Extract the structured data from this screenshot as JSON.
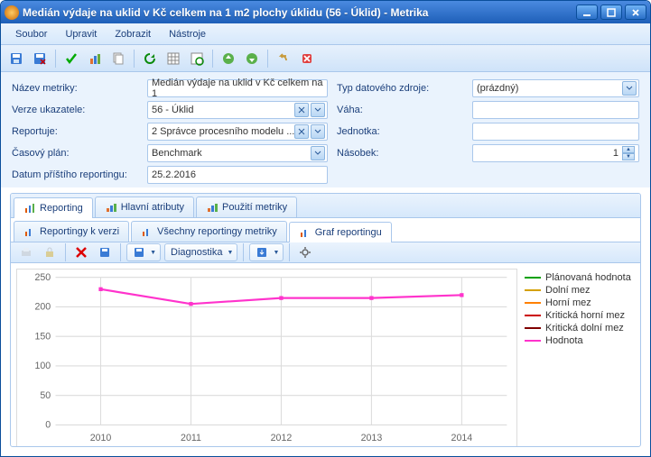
{
  "window": {
    "title": "Medián výdaje na uklid v Kč celkem na 1 m2 plochy úklidu (56 - Úklid) - Metrika"
  },
  "menu": {
    "items": [
      "Soubor",
      "Upravit",
      "Zobrazit",
      "Nástroje"
    ]
  },
  "form": {
    "labels": {
      "nazev": "Název metriky:",
      "verze": "Verze ukazatele:",
      "reportuje": "Reportuje:",
      "casovy": "Časový plán:",
      "datum": "Datum příštího reportingu:",
      "typ": "Typ datového zdroje:",
      "vaha": "Váha:",
      "jednotka": "Jednotka:",
      "nasobek": "Násobek:"
    },
    "values": {
      "nazev": "Medián výdaje na uklid v Kč celkem na 1",
      "verze": "56 - Úklid",
      "reportuje": "2 Správce procesního modelu  ...",
      "casovy": "Benchmark",
      "datum": "25.2.2016",
      "typ": "(prázdný)",
      "vaha": "",
      "jednotka": "",
      "nasobek": "1"
    }
  },
  "tabs_top": [
    {
      "label": "Reporting",
      "active": true
    },
    {
      "label": "Hlavní atributy",
      "active": false
    },
    {
      "label": "Použití metriky",
      "active": false
    }
  ],
  "tabs_sub": [
    {
      "label": "Reportingy k verzi",
      "active": false
    },
    {
      "label": "Všechny reportingy metriky",
      "active": false
    },
    {
      "label": "Graf reportingu",
      "active": true
    }
  ],
  "subtoolbar": {
    "diag": "Diagnostika"
  },
  "chart": {
    "type": "line",
    "background_color": "#ffffff",
    "grid_color": "#dcdcdc",
    "axis_color": "#666666",
    "label_fontsize": 10,
    "ylim": [
      0,
      250
    ],
    "ytick_step": 50,
    "x_categories": [
      "2010",
      "2011",
      "2012",
      "2013",
      "2014"
    ],
    "series": [
      {
        "name": "Plánovaná hodnota",
        "color": "#00a000",
        "values": [
          0,
          0,
          0,
          0,
          0
        ],
        "visible": false
      },
      {
        "name": "Dolní mez",
        "color": "#d4a000",
        "values": [
          0,
          0,
          0,
          0,
          0
        ],
        "visible": false
      },
      {
        "name": "Horní mez",
        "color": "#ff8000",
        "values": [
          0,
          0,
          0,
          0,
          0
        ],
        "visible": false
      },
      {
        "name": "Kritická horní mez",
        "color": "#cc0000",
        "values": [
          0,
          0,
          0,
          0,
          0
        ],
        "visible": false
      },
      {
        "name": "Kritická dolní mez",
        "color": "#800000",
        "values": [
          0,
          0,
          0,
          0,
          0
        ],
        "visible": false
      },
      {
        "name": "Hodnota",
        "color": "#ff33cc",
        "values": [
          230,
          205,
          215,
          215,
          220
        ],
        "visible": true
      }
    ],
    "line_width": 2
  }
}
